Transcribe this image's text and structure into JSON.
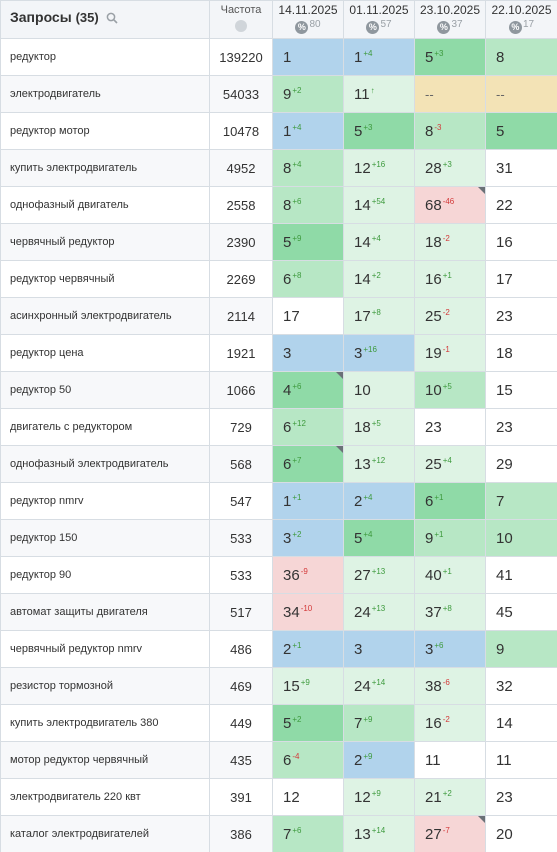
{
  "header": {
    "queries_label": "Запросы",
    "queries_count": "(35)",
    "freq_label": "Частота",
    "dates": [
      {
        "date": "14.11.2025",
        "pct": "80"
      },
      {
        "date": "01.11.2025",
        "pct": "57"
      },
      {
        "date": "23.10.2025",
        "pct": "37"
      },
      {
        "date": "22.10.2025",
        "pct": "17"
      }
    ]
  },
  "colors": {
    "blue": "#b1d3ec",
    "green_strong": "#8fdaa7",
    "green_mid": "#b7e7c5",
    "green_light": "#def3e4",
    "red_light": "#f6d6d6",
    "yellow": "#f3e3b6",
    "delta_up": "#3d9a3d",
    "delta_down": "#d33a3a"
  },
  "rows": [
    {
      "query": "редуктор",
      "freq": "139220",
      "cells": [
        {
          "v": "1",
          "d": "",
          "t": "",
          "c": "blue",
          "m": false
        },
        {
          "v": "1",
          "d": "4",
          "t": "up",
          "c": "blue",
          "m": false
        },
        {
          "v": "5",
          "d": "3",
          "t": "up",
          "c": "g1",
          "m": false
        },
        {
          "v": "8",
          "d": "",
          "t": "",
          "c": "g2",
          "m": false
        }
      ]
    },
    {
      "query": "электродвигатель",
      "freq": "54033",
      "cells": [
        {
          "v": "9",
          "d": "2",
          "t": "up",
          "c": "g2",
          "m": false
        },
        {
          "v": "11",
          "d": "↑",
          "t": "up",
          "c": "g3",
          "m": false
        },
        {
          "v": "--",
          "d": "",
          "t": "",
          "c": "y",
          "m": false
        },
        {
          "v": "--",
          "d": "",
          "t": "",
          "c": "y",
          "m": false
        }
      ]
    },
    {
      "query": "редуктор мотор",
      "freq": "10478",
      "cells": [
        {
          "v": "1",
          "d": "4",
          "t": "up",
          "c": "blue",
          "m": false
        },
        {
          "v": "5",
          "d": "3",
          "t": "up",
          "c": "g1",
          "m": false
        },
        {
          "v": "8",
          "d": "3",
          "t": "dn",
          "c": "g2",
          "m": false
        },
        {
          "v": "5",
          "d": "",
          "t": "",
          "c": "g1",
          "m": false
        }
      ]
    },
    {
      "query": "купить электродвигатель",
      "freq": "4952",
      "cells": [
        {
          "v": "8",
          "d": "4",
          "t": "up",
          "c": "g2",
          "m": false
        },
        {
          "v": "12",
          "d": "16",
          "t": "up",
          "c": "g3",
          "m": false
        },
        {
          "v": "28",
          "d": "3",
          "t": "up",
          "c": "g3",
          "m": false
        },
        {
          "v": "31",
          "d": "",
          "t": "",
          "c": "w",
          "m": false
        }
      ]
    },
    {
      "query": "однофазный двигатель",
      "freq": "2558",
      "cells": [
        {
          "v": "8",
          "d": "6",
          "t": "up",
          "c": "g2",
          "m": false
        },
        {
          "v": "14",
          "d": "54",
          "t": "up",
          "c": "g3",
          "m": false
        },
        {
          "v": "68",
          "d": "46",
          "t": "dn",
          "c": "r",
          "m": true
        },
        {
          "v": "22",
          "d": "",
          "t": "",
          "c": "w",
          "m": false
        }
      ]
    },
    {
      "query": "червячный редуктор",
      "freq": "2390",
      "cells": [
        {
          "v": "5",
          "d": "9",
          "t": "up",
          "c": "g1",
          "m": false
        },
        {
          "v": "14",
          "d": "4",
          "t": "up",
          "c": "g3",
          "m": false
        },
        {
          "v": "18",
          "d": "2",
          "t": "dn",
          "c": "g3",
          "m": false
        },
        {
          "v": "16",
          "d": "",
          "t": "",
          "c": "w",
          "m": false
        }
      ]
    },
    {
      "query": "редуктор червячный",
      "freq": "2269",
      "cells": [
        {
          "v": "6",
          "d": "8",
          "t": "up",
          "c": "g2",
          "m": false
        },
        {
          "v": "14",
          "d": "2",
          "t": "up",
          "c": "g3",
          "m": false
        },
        {
          "v": "16",
          "d": "1",
          "t": "up",
          "c": "g3",
          "m": false
        },
        {
          "v": "17",
          "d": "",
          "t": "",
          "c": "w",
          "m": false
        }
      ]
    },
    {
      "query": "асинхронный электродвигатель",
      "freq": "2114",
      "cells": [
        {
          "v": "17",
          "d": "",
          "t": "",
          "c": "w",
          "m": false
        },
        {
          "v": "17",
          "d": "8",
          "t": "up",
          "c": "g3",
          "m": false
        },
        {
          "v": "25",
          "d": "2",
          "t": "dn",
          "c": "g3",
          "m": false
        },
        {
          "v": "23",
          "d": "",
          "t": "",
          "c": "w",
          "m": false
        }
      ]
    },
    {
      "query": "редуктор цена",
      "freq": "1921",
      "cells": [
        {
          "v": "3",
          "d": "",
          "t": "",
          "c": "blue",
          "m": false
        },
        {
          "v": "3",
          "d": "16",
          "t": "up",
          "c": "blue",
          "m": false
        },
        {
          "v": "19",
          "d": "1",
          "t": "dn",
          "c": "g3",
          "m": false
        },
        {
          "v": "18",
          "d": "",
          "t": "",
          "c": "w",
          "m": false
        }
      ]
    },
    {
      "query": "редуктор 50",
      "freq": "1066",
      "cells": [
        {
          "v": "4",
          "d": "6",
          "t": "up",
          "c": "g1",
          "m": true
        },
        {
          "v": "10",
          "d": "",
          "t": "",
          "c": "g3",
          "m": false
        },
        {
          "v": "10",
          "d": "5",
          "t": "up",
          "c": "g2",
          "m": false
        },
        {
          "v": "15",
          "d": "",
          "t": "",
          "c": "w",
          "m": false
        }
      ]
    },
    {
      "query": "двигатель с редуктором",
      "freq": "729",
      "cells": [
        {
          "v": "6",
          "d": "12",
          "t": "up",
          "c": "g2",
          "m": false
        },
        {
          "v": "18",
          "d": "5",
          "t": "up",
          "c": "g3",
          "m": false
        },
        {
          "v": "23",
          "d": "",
          "t": "",
          "c": "w",
          "m": false
        },
        {
          "v": "23",
          "d": "",
          "t": "",
          "c": "w",
          "m": false
        }
      ]
    },
    {
      "query": "однофазный электродвигатель",
      "freq": "568",
      "cells": [
        {
          "v": "6",
          "d": "7",
          "t": "up",
          "c": "g1",
          "m": true
        },
        {
          "v": "13",
          "d": "12",
          "t": "up",
          "c": "g3",
          "m": false
        },
        {
          "v": "25",
          "d": "4",
          "t": "up",
          "c": "g3",
          "m": false
        },
        {
          "v": "29",
          "d": "",
          "t": "",
          "c": "w",
          "m": false
        }
      ]
    },
    {
      "query": "редуктор nmrv",
      "freq": "547",
      "cells": [
        {
          "v": "1",
          "d": "1",
          "t": "up",
          "c": "blue",
          "m": false
        },
        {
          "v": "2",
          "d": "4",
          "t": "up",
          "c": "blue",
          "m": false
        },
        {
          "v": "6",
          "d": "1",
          "t": "up",
          "c": "g1",
          "m": false
        },
        {
          "v": "7",
          "d": "",
          "t": "",
          "c": "g2",
          "m": false
        }
      ]
    },
    {
      "query": "редуктор 150",
      "freq": "533",
      "cells": [
        {
          "v": "3",
          "d": "2",
          "t": "up",
          "c": "blue",
          "m": false
        },
        {
          "v": "5",
          "d": "4",
          "t": "up",
          "c": "g1",
          "m": false
        },
        {
          "v": "9",
          "d": "1",
          "t": "up",
          "c": "g2",
          "m": false
        },
        {
          "v": "10",
          "d": "",
          "t": "",
          "c": "g2",
          "m": false
        }
      ]
    },
    {
      "query": "редуктор 90",
      "freq": "533",
      "cells": [
        {
          "v": "36",
          "d": "9",
          "t": "dn",
          "c": "r",
          "m": false
        },
        {
          "v": "27",
          "d": "13",
          "t": "up",
          "c": "g3",
          "m": false
        },
        {
          "v": "40",
          "d": "1",
          "t": "up",
          "c": "g3",
          "m": false
        },
        {
          "v": "41",
          "d": "",
          "t": "",
          "c": "w",
          "m": false
        }
      ]
    },
    {
      "query": "автомат защиты двигателя",
      "freq": "517",
      "cells": [
        {
          "v": "34",
          "d": "10",
          "t": "dn",
          "c": "r",
          "m": false
        },
        {
          "v": "24",
          "d": "13",
          "t": "up",
          "c": "g3",
          "m": false
        },
        {
          "v": "37",
          "d": "8",
          "t": "up",
          "c": "g3",
          "m": false
        },
        {
          "v": "45",
          "d": "",
          "t": "",
          "c": "w",
          "m": false
        }
      ]
    },
    {
      "query": "червячный редуктор nmrv",
      "freq": "486",
      "cells": [
        {
          "v": "2",
          "d": "1",
          "t": "up",
          "c": "blue",
          "m": false
        },
        {
          "v": "3",
          "d": "",
          "t": "",
          "c": "blue",
          "m": false
        },
        {
          "v": "3",
          "d": "6",
          "t": "up",
          "c": "blue",
          "m": false
        },
        {
          "v": "9",
          "d": "",
          "t": "",
          "c": "g2",
          "m": false
        }
      ]
    },
    {
      "query": "резистор тормозной",
      "freq": "469",
      "cells": [
        {
          "v": "15",
          "d": "9",
          "t": "up",
          "c": "g3",
          "m": false
        },
        {
          "v": "24",
          "d": "14",
          "t": "up",
          "c": "g3",
          "m": false
        },
        {
          "v": "38",
          "d": "6",
          "t": "dn",
          "c": "g3",
          "m": false
        },
        {
          "v": "32",
          "d": "",
          "t": "",
          "c": "w",
          "m": false
        }
      ]
    },
    {
      "query": "купить электродвигатель 380",
      "freq": "449",
      "cells": [
        {
          "v": "5",
          "d": "2",
          "t": "up",
          "c": "g1",
          "m": false
        },
        {
          "v": "7",
          "d": "9",
          "t": "up",
          "c": "g2",
          "m": false
        },
        {
          "v": "16",
          "d": "2",
          "t": "dn",
          "c": "g3",
          "m": false
        },
        {
          "v": "14",
          "d": "",
          "t": "",
          "c": "w",
          "m": false
        }
      ]
    },
    {
      "query": "мотор редуктор червячный",
      "freq": "435",
      "cells": [
        {
          "v": "6",
          "d": "4",
          "t": "dn",
          "c": "g2",
          "m": false
        },
        {
          "v": "2",
          "d": "9",
          "t": "up",
          "c": "blue",
          "m": false
        },
        {
          "v": "11",
          "d": "",
          "t": "",
          "c": "w",
          "m": false
        },
        {
          "v": "11",
          "d": "",
          "t": "",
          "c": "w",
          "m": false
        }
      ]
    },
    {
      "query": "электродвигатель 220 квт",
      "freq": "391",
      "cells": [
        {
          "v": "12",
          "d": "",
          "t": "",
          "c": "w",
          "m": false
        },
        {
          "v": "12",
          "d": "9",
          "t": "up",
          "c": "g3",
          "m": false
        },
        {
          "v": "21",
          "d": "2",
          "t": "up",
          "c": "g3",
          "m": false
        },
        {
          "v": "23",
          "d": "",
          "t": "",
          "c": "w",
          "m": false
        }
      ]
    },
    {
      "query": "каталог электродвигателей",
      "freq": "386",
      "cells": [
        {
          "v": "7",
          "d": "6",
          "t": "up",
          "c": "g2",
          "m": false
        },
        {
          "v": "13",
          "d": "14",
          "t": "up",
          "c": "g3",
          "m": false
        },
        {
          "v": "27",
          "d": "7",
          "t": "dn",
          "c": "r",
          "m": true
        },
        {
          "v": "20",
          "d": "",
          "t": "",
          "c": "w",
          "m": false
        }
      ]
    }
  ]
}
